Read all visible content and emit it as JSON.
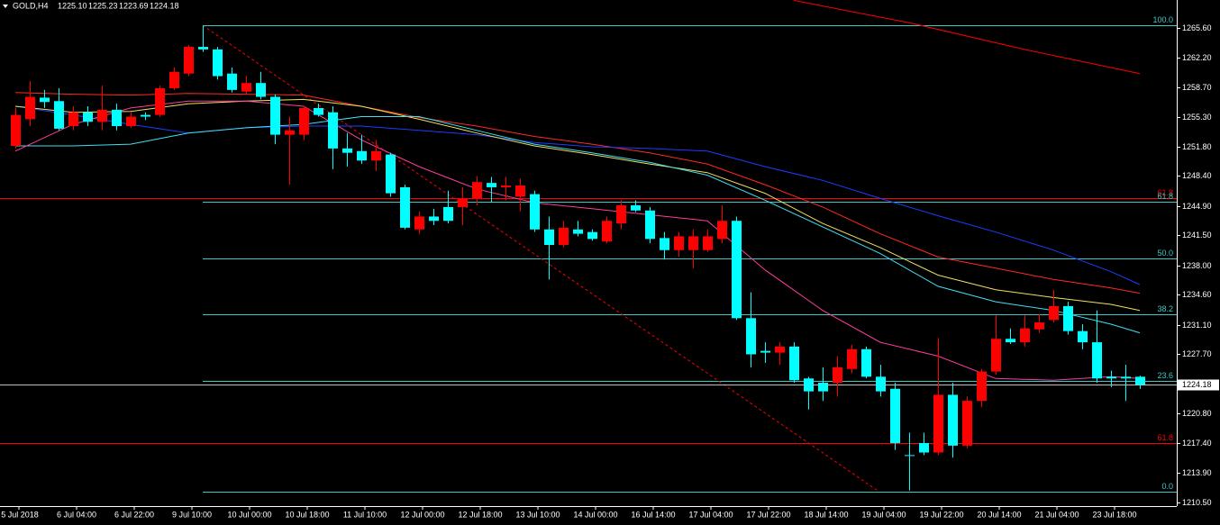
{
  "chart_data": {
    "type": "candlestick",
    "header": {
      "symbol": "GOLD,H4",
      "ohlc_labels": [
        "1225.10",
        "1225.23",
        "1223.69",
        "1224.18"
      ]
    },
    "categories": [
      "5 Jul 2018",
      null,
      null,
      null,
      "6 Jul 04:00",
      null,
      null,
      null,
      "6 Jul 22:00",
      null,
      null,
      null,
      "9 Jul 10:00",
      null,
      null,
      null,
      "10 Jul 00:00",
      null,
      null,
      null,
      "10 Jul 18:00",
      null,
      null,
      null,
      "11 Jul 10:00",
      null,
      null,
      null,
      "12 Jul 00:00",
      null,
      null,
      null,
      "12 Jul 18:00",
      null,
      null,
      null,
      "13 Jul 10:00",
      null,
      null,
      null,
      "14 Jul 00:00",
      null,
      null,
      null,
      "16 Jul 14:00",
      null,
      null,
      null,
      "17 Jul 04:00",
      null,
      null,
      null,
      "17 Jul 22:00",
      null,
      null,
      null,
      "18 Jul 14:00",
      null,
      null,
      null,
      "19 Jul 04:00",
      null,
      null,
      null,
      "19 Jul 22:00",
      null,
      null,
      null,
      "20 Jul 14:00",
      null,
      null,
      null,
      "21 Jul 04:00",
      null,
      null,
      null,
      "23 Jul 18:00",
      null,
      null
    ],
    "open": [
      1251.9,
      1255.0,
      1257.5,
      1257.1,
      1254.2,
      1255.8,
      1254.7,
      1256.1,
      1254.2,
      1255.5,
      1255.5,
      1258.6,
      1260.3,
      1263.4,
      1263.1,
      1260.3,
      1258.2,
      1259.2,
      1257.6,
      1253.2,
      1253.2,
      1256.3,
      1255.8,
      1251.6,
      1251.3,
      1250.2,
      1250.9,
      1247.1,
      1242.2,
      1243.7,
      1244.8,
      1244.8,
      1245.8,
      1247.6,
      1247.1,
      1246.0,
      1246.3,
      1242.2,
      1240.4,
      1242.2,
      1241.9,
      1240.8,
      1242.9,
      1245.0,
      1244.4,
      1241.2,
      1239.8,
      1239.8,
      1239.8,
      1241.1,
      1243.2,
      1231.9,
      1228.1,
      1227.9,
      1228.6,
      1224.9,
      1224.4,
      1224.4,
      1226.0,
      1228.3,
      1225.1,
      1223.7,
      1216.0,
      1217.4,
      1216.3,
      1223.0,
      1217.1,
      1222.3,
      1225.7,
      1229.5,
      1229.1,
      1230.6,
      1231.7,
      1233.3,
      1230.4,
      1229.1,
      1225.1,
      1225.1,
      1225.1
    ],
    "high": [
      1256.3,
      1259.4,
      1258.4,
      1258.6,
      1256.5,
      1256.5,
      1258.9,
      1256.8,
      1255.8,
      1255.8,
      1258.9,
      1261.0,
      1263.6,
      1265.9,
      1263.4,
      1261.0,
      1260.0,
      1260.5,
      1257.9,
      1255.3,
      1256.5,
      1256.8,
      1256.5,
      1253.4,
      1253.2,
      1252.6,
      1251.1,
      1247.4,
      1244.3,
      1244.6,
      1246.7,
      1247.1,
      1248.4,
      1248.3,
      1248.3,
      1248.1,
      1246.7,
      1243.7,
      1243.2,
      1243.2,
      1242.2,
      1243.7,
      1245.6,
      1245.6,
      1244.8,
      1241.9,
      1241.9,
      1242.2,
      1242.2,
      1245.0,
      1243.7,
      1234.9,
      1229.1,
      1229.1,
      1229.1,
      1225.1,
      1226.2,
      1227.5,
      1228.8,
      1228.6,
      1226.5,
      1224.4,
      1218.6,
      1218.6,
      1229.6,
      1224.4,
      1222.8,
      1226.0,
      1232.2,
      1230.7,
      1232.2,
      1232.4,
      1235.2,
      1233.8,
      1231.2,
      1232.8,
      1225.8,
      1226.5,
      1225.23
    ],
    "low": [
      1251.6,
      1254.2,
      1256.3,
      1253.7,
      1253.7,
      1254.2,
      1253.7,
      1253.7,
      1254.0,
      1254.9,
      1255.3,
      1258.4,
      1260.0,
      1262.8,
      1259.6,
      1258.1,
      1257.9,
      1257.3,
      1252.1,
      1247.4,
      1252.6,
      1255.3,
      1249.2,
      1249.5,
      1249.8,
      1249.0,
      1246.0,
      1242.2,
      1241.7,
      1242.7,
      1242.9,
      1242.7,
      1245.0,
      1245.3,
      1245.6,
      1244.3,
      1241.9,
      1236.4,
      1240.1,
      1241.4,
      1240.9,
      1240.6,
      1242.2,
      1244.2,
      1240.6,
      1238.7,
      1239.0,
      1237.7,
      1239.6,
      1240.6,
      1231.7,
      1226.2,
      1226.7,
      1226.5,
      1224.4,
      1221.3,
      1222.3,
      1222.8,
      1225.5,
      1224.9,
      1222.8,
      1216.6,
      1211.9,
      1216.0,
      1216.0,
      1215.7,
      1216.8,
      1221.6,
      1225.3,
      1228.9,
      1228.6,
      1230.2,
      1231.4,
      1230.0,
      1228.3,
      1224.4,
      1223.9,
      1222.3,
      1223.69
    ],
    "close": [
      1255.5,
      1257.6,
      1257.0,
      1253.9,
      1255.8,
      1254.7,
      1256.1,
      1254.2,
      1255.3,
      1255.3,
      1258.6,
      1260.5,
      1263.4,
      1263.1,
      1260.0,
      1258.4,
      1259.2,
      1257.6,
      1253.2,
      1253.7,
      1256.3,
      1255.5,
      1251.6,
      1251.1,
      1250.2,
      1251.3,
      1246.4,
      1242.4,
      1243.7,
      1243.2,
      1243.2,
      1245.8,
      1247.7,
      1247.1,
      1247.3,
      1247.3,
      1242.2,
      1240.4,
      1242.4,
      1241.7,
      1241.1,
      1243.2,
      1245.0,
      1244.4,
      1241.1,
      1239.8,
      1241.4,
      1241.4,
      1241.4,
      1243.2,
      1231.9,
      1227.7,
      1227.9,
      1228.6,
      1224.7,
      1223.4,
      1223.4,
      1226.2,
      1228.3,
      1225.1,
      1223.4,
      1217.4,
      1215.9,
      1216.3,
      1223.0,
      1217.1,
      1222.3,
      1225.7,
      1229.5,
      1229.1,
      1230.7,
      1231.4,
      1233.3,
      1230.4,
      1229.1,
      1224.9,
      1224.9,
      1224.9,
      1224.18
    ],
    "up_color": "#ff0000",
    "down_color": "#00ffff",
    "moving_averages": [
      {
        "color": "#ff2a1e",
        "x": [
          0,
          4,
          8,
          12,
          16,
          20,
          24,
          28,
          32,
          36,
          40,
          44,
          48,
          52,
          56,
          60,
          64,
          68,
          72,
          76,
          78
        ],
        "values": [
          1258.1,
          1257.9,
          1257.8,
          1258.0,
          1257.9,
          1257.8,
          1256.5,
          1255.2,
          1254.2,
          1253.0,
          1252.1,
          1251.1,
          1249.8,
          1247.4,
          1244.8,
          1241.7,
          1239.0,
          1237.7,
          1236.4,
          1235.4,
          1234.8
        ]
      },
      {
        "color": "#1e3cff",
        "x": [
          0,
          4,
          8,
          12,
          16,
          20,
          24,
          28,
          32,
          36,
          40,
          44,
          48,
          52,
          56,
          60,
          64,
          68,
          72,
          76,
          78
        ],
        "values": [
          1256.5,
          1255.5,
          1254.4,
          1253.4,
          1254.0,
          1254.2,
          1254.2,
          1253.7,
          1253.2,
          1252.3,
          1251.8,
          1251.6,
          1251.3,
          1249.5,
          1247.9,
          1245.8,
          1243.8,
          1241.9,
          1239.8,
          1237.3,
          1235.8
        ]
      },
      {
        "color": "#f0e060",
        "x": [
          0,
          4,
          8,
          12,
          16,
          20,
          24,
          28,
          32,
          36,
          40,
          44,
          48,
          52,
          56,
          60,
          64,
          68,
          72,
          76,
          78
        ],
        "values": [
          1256.5,
          1255.8,
          1255.9,
          1256.8,
          1257.1,
          1257.3,
          1256.5,
          1255.0,
          1253.4,
          1251.9,
          1250.9,
          1249.8,
          1248.8,
          1246.4,
          1242.9,
          1240.1,
          1236.9,
          1235.2,
          1234.3,
          1233.5,
          1232.8
        ]
      },
      {
        "color": "#40e0f0",
        "x": [
          0,
          4,
          8,
          12,
          16,
          20,
          24,
          28,
          32,
          36,
          40,
          44,
          48,
          52,
          56,
          60,
          64,
          68,
          72,
          76,
          78
        ],
        "values": [
          1251.9,
          1251.9,
          1252.1,
          1253.4,
          1254.0,
          1254.4,
          1255.3,
          1255.3,
          1253.7,
          1252.1,
          1251.1,
          1250.0,
          1248.5,
          1245.6,
          1242.5,
          1239.4,
          1235.6,
          1233.8,
          1232.8,
          1231.2,
          1230.2
        ]
      },
      {
        "color": "#ff3c9c",
        "x": [
          0,
          4,
          8,
          12,
          16,
          20,
          24,
          28,
          32,
          36,
          40,
          44,
          48,
          52,
          56,
          60,
          64,
          68,
          72,
          76,
          78
        ],
        "values": [
          1251.3,
          1254.4,
          1256.3,
          1257.1,
          1257.1,
          1256.5,
          1252.6,
          1249.5,
          1246.9,
          1245.3,
          1244.6,
          1243.9,
          1243.2,
          1237.5,
          1232.8,
          1229.1,
          1227.5,
          1224.9,
          1224.7,
          1225.1,
          1224.9
        ]
      },
      {
        "color": "#ff0000",
        "x": [
          54,
          62,
          70,
          78
        ],
        "values": [
          1268.8,
          1266.2,
          1263.1,
          1260.3
        ]
      }
    ],
    "fib_color": "#3cc8c8",
    "fib_levels": [
      {
        "value": 1265.9,
        "label": "100.0"
      },
      {
        "value": 1245.4,
        "label": "61.8"
      },
      {
        "value": 1238.8,
        "label": "50.0"
      },
      {
        "value": 1232.4,
        "label": "38.2"
      },
      {
        "value": 1224.6,
        "label": "23.6"
      },
      {
        "value": 1211.8,
        "label": "0.0"
      }
    ],
    "level_color": "#ff0000",
    "levels": [
      {
        "value": 1245.8,
        "label": "61.8"
      },
      {
        "value": 1217.4,
        "label": "61.8"
      }
    ],
    "ylim": [
      1210.08,
      1268.84
    ],
    "yticks": [
      {
        "value": 1265.6,
        "label": "1265.60"
      },
      {
        "value": 1262.2,
        "label": "1262.20"
      },
      {
        "value": 1258.7,
        "label": "1258.70"
      },
      {
        "value": 1255.3,
        "label": "1255.30"
      },
      {
        "value": 1251.8,
        "label": "1251.80"
      },
      {
        "value": 1248.4,
        "label": "1248.40"
      },
      {
        "value": 1244.9,
        "label": "1244.90"
      },
      {
        "value": 1241.5,
        "label": "1241.50"
      },
      {
        "value": 1238.0,
        "label": "1238.00"
      },
      {
        "value": 1234.6,
        "label": "1234.60"
      },
      {
        "value": 1231.1,
        "label": "1231.10"
      },
      {
        "value": 1227.7,
        "label": "1227.70"
      },
      {
        "value": 1220.8,
        "label": "1220.80"
      },
      {
        "value": 1217.4,
        "label": "1217.40"
      },
      {
        "value": 1213.9,
        "label": "1213.90"
      },
      {
        "value": 1210.5,
        "label": "1210.50"
      }
    ]
  }
}
